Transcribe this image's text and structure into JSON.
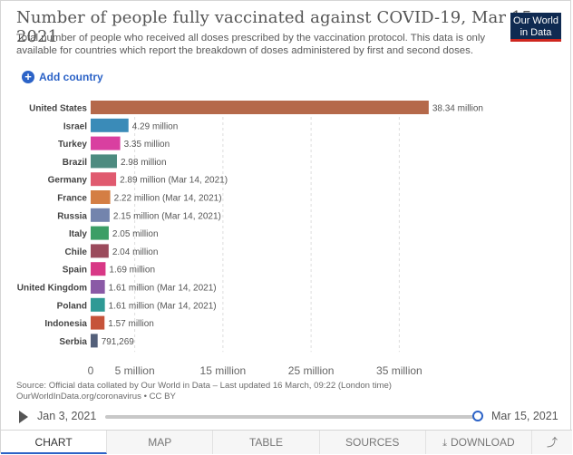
{
  "header": {
    "title": "Number of people fully vaccinated against COVID-19, Mar 15, 2021",
    "subtitle": "Total number of people who received all doses prescribed by the vaccination protocol. This data is only available for countries which report the breakdown of doses administered by first and second doses.",
    "logo_line1": "Our World",
    "logo_line2": "in Data"
  },
  "controls": {
    "add_country_label": "Add country",
    "add_icon": "plus-circle-icon"
  },
  "chart_data": {
    "type": "bar",
    "orientation": "horizontal",
    "categories": [
      "United States",
      "Israel",
      "Turkey",
      "Brazil",
      "Germany",
      "France",
      "Russia",
      "Italy",
      "Chile",
      "Spain",
      "United Kingdom",
      "Poland",
      "Indonesia",
      "Serbia"
    ],
    "values": [
      38340000,
      4290000,
      3350000,
      2980000,
      2890000,
      2220000,
      2150000,
      2050000,
      2040000,
      1690000,
      1610000,
      1610000,
      1570000,
      791269
    ],
    "value_labels": [
      "38.34 million",
      "4.29 million",
      "3.35 million",
      "2.98 million",
      "2.89 million (Mar 14, 2021)",
      "2.22 million (Mar 14, 2021)",
      "2.15 million (Mar 14, 2021)",
      "2.05 million",
      "2.04 million",
      "1.69 million",
      "1.61 million (Mar 14, 2021)",
      "1.61 million (Mar 14, 2021)",
      "1.57 million",
      "791,269"
    ],
    "colors": [
      "#b5694a",
      "#3a8bb8",
      "#d93fa0",
      "#4d8b80",
      "#e05a6f",
      "#d47e44",
      "#7384ad",
      "#3c9e66",
      "#9b4b5c",
      "#d83886",
      "#8a5aa6",
      "#2f9a95",
      "#c6533a",
      "#54607a"
    ],
    "xticks": [
      0,
      5000000,
      15000000,
      25000000,
      35000000
    ],
    "xtick_labels": [
      "0",
      "5 million",
      "15 million",
      "25 million",
      "35 million"
    ],
    "xlim": [
      0,
      40000000
    ],
    "grid": true
  },
  "footer": {
    "source_line1": "Source: Official data collated by Our World in Data – Last updated 16 March, 09:22 (London time)",
    "source_line2": "OurWorldInData.org/coronavirus • CC BY"
  },
  "timeline": {
    "start_label": "Jan 3, 2021",
    "end_label": "Mar 15, 2021"
  },
  "tabs": [
    {
      "label": "CHART"
    },
    {
      "label": "MAP"
    },
    {
      "label": "TABLE"
    },
    {
      "label": "SOURCES"
    },
    {
      "label": "DOWNLOAD"
    }
  ],
  "icons": {
    "play": "play-icon",
    "download": "download-icon",
    "share": "share-icon"
  }
}
